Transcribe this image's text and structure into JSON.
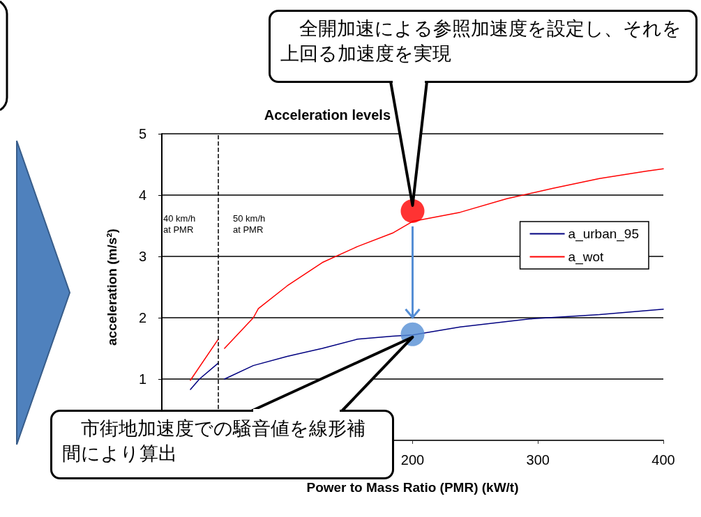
{
  "chart_data": {
    "type": "line",
    "title": "Acceleration levels",
    "xlabel": "Power to Mass Ratio (PMR) (kW/t)",
    "ylabel": "acceleration (m/s²)",
    "xlim": [
      0,
      400
    ],
    "xticks": [
      200,
      300,
      400
    ],
    "ylim": [
      0,
      5
    ],
    "yticks": [
      1,
      2,
      3,
      4,
      5
    ],
    "grid": "y",
    "legend": "right",
    "marker": "none",
    "line_style": "solid",
    "series": [
      {
        "name": "a_urban_95",
        "color": "#000080",
        "x": [
          22.8,
          30,
          45,
          47.5,
          50,
          73,
          100,
          128,
          156,
          184,
          200,
          238,
          293,
          349,
          400
        ],
        "values": [
          0.83,
          1.0,
          1.26,
          null,
          1.0,
          1.22,
          1.37,
          1.5,
          1.65,
          1.7,
          1.72,
          1.85,
          1.98,
          2.05,
          2.14
        ]
      },
      {
        "name": "a_wot",
        "color": "#ff0000",
        "x": [
          22.8,
          45,
          47.5,
          50,
          73,
          77,
          100,
          128,
          156,
          184,
          200,
          238,
          275,
          312,
          349,
          386,
          400
        ],
        "values": [
          0.98,
          1.65,
          null,
          1.5,
          2.0,
          2.15,
          2.52,
          2.9,
          3.16,
          3.38,
          3.57,
          3.72,
          3.94,
          4.11,
          4.27,
          4.39,
          4.43
        ]
      },
      {
        "type": "scatter",
        "marker": "circle",
        "color": "#ff0000",
        "x": [
          200
        ],
        "values": [
          3.74
        ]
      },
      {
        "type": "scatter",
        "marker": "circle",
        "color": "#558ed5",
        "x": [
          200
        ],
        "values": [
          1.73
        ]
      }
    ],
    "ref_lines": [
      {
        "axis": "x",
        "value": 45,
        "line_style": "dashed",
        "color": "#000000"
      }
    ],
    "annotations": [
      {
        "text": "全開加速による参照加速度を設定し、それを上回る加速度を実現",
        "x": 200,
        "y": 3.74
      },
      {
        "text": "市街地加速度での騒音値を線形補間により算出",
        "x": 200,
        "y": 1.73
      },
      "40 km/h at PMR",
      "50 km/h at PMR"
    ]
  }
}
